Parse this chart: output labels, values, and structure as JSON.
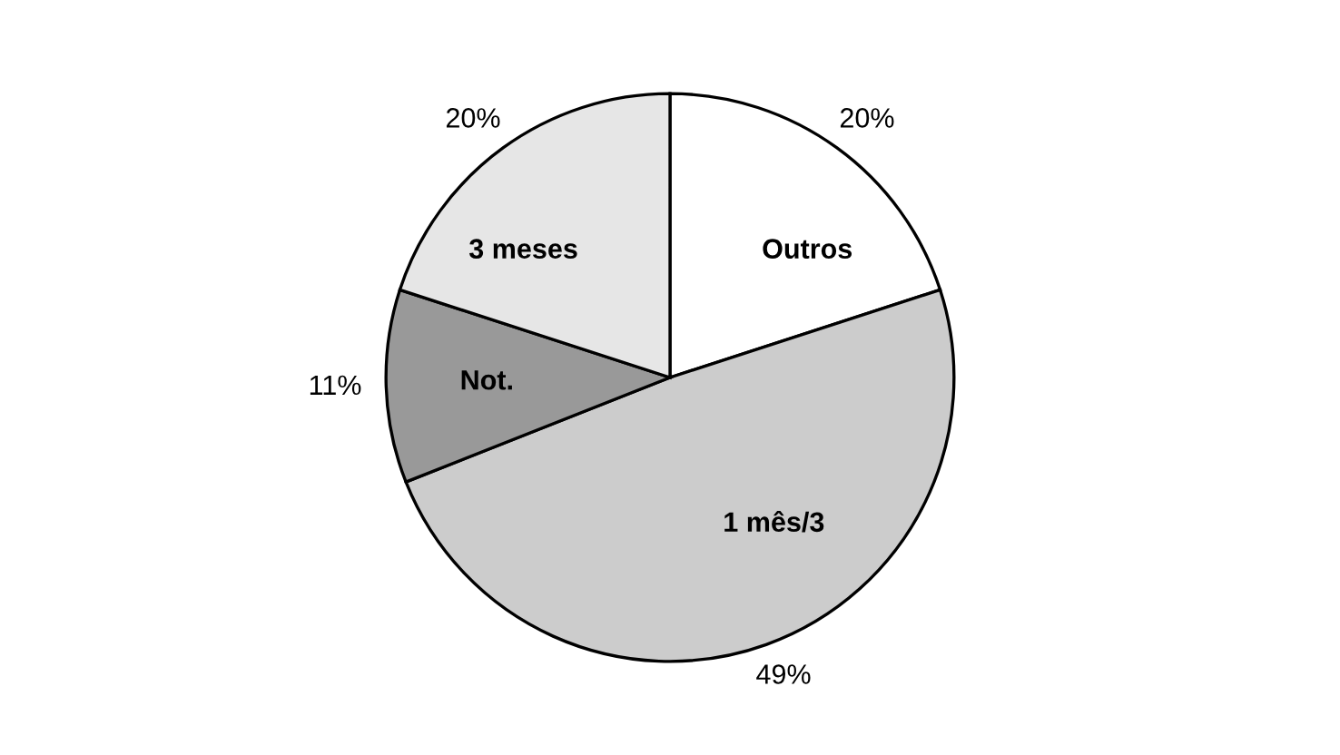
{
  "chart_data": {
    "type": "pie",
    "categories": [
      "Outros",
      "1 mês/3",
      "Not.",
      "3 meses"
    ],
    "values": [
      20,
      49,
      11,
      20
    ],
    "value_labels": [
      "20%",
      "49%",
      "11%",
      "20%"
    ],
    "colors": [
      "#ffffff",
      "#cccccc",
      "#999999",
      "#e6e6e6"
    ],
    "legend": false
  }
}
